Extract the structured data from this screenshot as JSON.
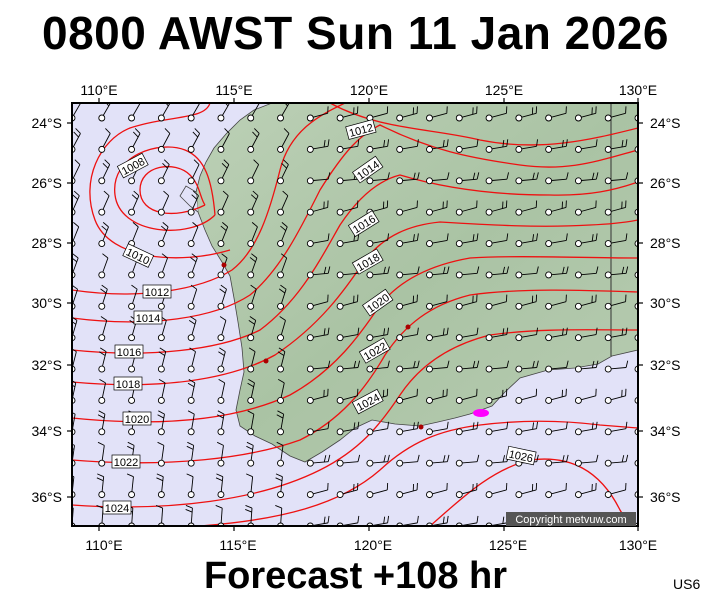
{
  "title": "0800 AWST Sun 11 Jan 2026",
  "footer": "Forecast +108 hr",
  "code": "US6",
  "copyright": "Copyright metvuw.com",
  "map": {
    "lon_range": [
      109,
      130
    ],
    "lat_range": [
      -37,
      -23.4
    ],
    "lon_ticks": [
      "110°E",
      "115°E",
      "120°E",
      "125°E",
      "130°E"
    ],
    "lat_ticks": [
      "24°S",
      "26°S",
      "28°S",
      "30°S",
      "32°S",
      "34°S",
      "36°S"
    ],
    "isobar_labels": [
      "1008",
      "1010",
      "1012",
      "1014",
      "1016",
      "1018",
      "1020",
      "1022",
      "1024",
      "1026"
    ],
    "colors": {
      "ocean": "#e2e2f8",
      "land": "#b2c9ad",
      "isobar": "#ee1111",
      "grid_line": "#555555",
      "low_marker": "#ff00ff"
    }
  }
}
